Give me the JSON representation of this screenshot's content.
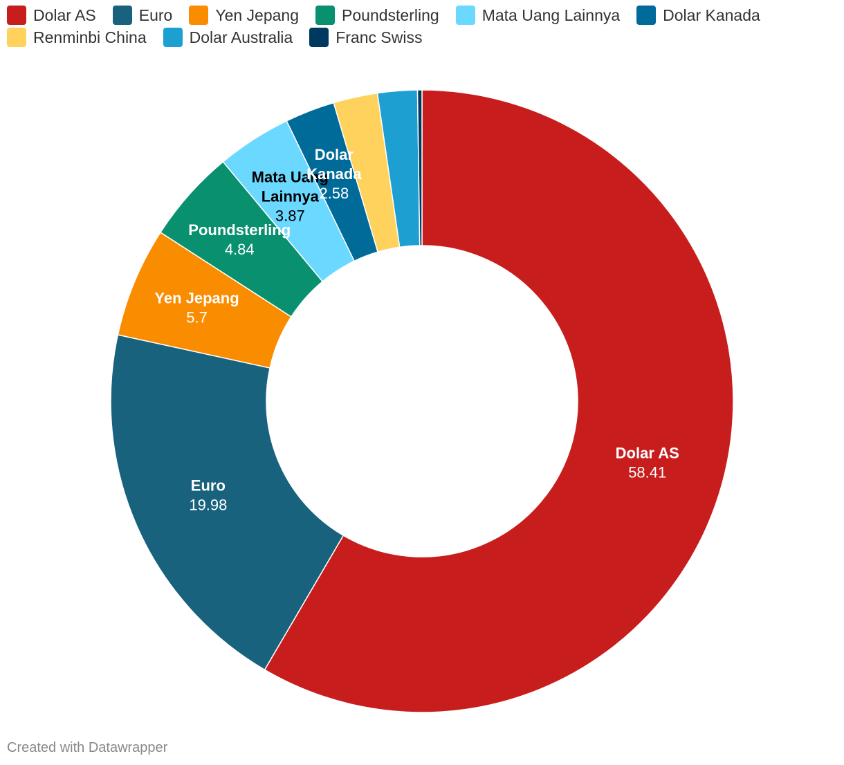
{
  "chart_data": {
    "type": "pie",
    "variant": "donut",
    "categories": [
      "Dolar AS",
      "Euro",
      "Yen Jepang",
      "Poundsterling",
      "Mata Uang Lainnya",
      "Dolar Kanada",
      "Renminbi China",
      "Dolar Australia",
      "Franc Swiss"
    ],
    "values": [
      58.41,
      19.98,
      5.7,
      4.84,
      3.87,
      2.58,
      2.29,
      2.06,
      0.23
    ],
    "colors": [
      "#c71e1d",
      "#18627e",
      "#fa8c00",
      "#09906e",
      "#6bd8ff",
      "#006a99",
      "#ffd25e",
      "#1d9fd2",
      "#003960"
    ],
    "labeled": [
      true,
      true,
      true,
      true,
      true,
      true,
      false,
      false,
      false
    ],
    "label_text_colors": [
      "#ffffff",
      "#ffffff",
      "#ffffff",
      "#ffffff",
      "#000000",
      "#ffffff",
      "#000000",
      "#ffffff",
      "#ffffff"
    ],
    "legend_position": "top-left"
  },
  "footer": {
    "credit": "Created with Datawrapper"
  }
}
